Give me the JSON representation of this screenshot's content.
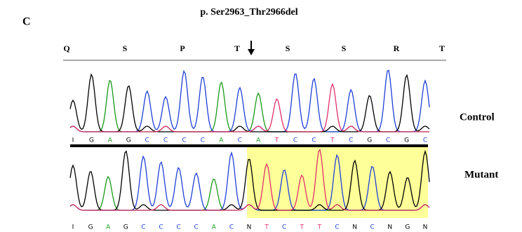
{
  "panel_label": "C",
  "title": "p. Ser2963_Thr2966del",
  "amino_acids": [
    "Q",
    "S",
    "P",
    "T",
    "S",
    "S",
    "R",
    "T"
  ],
  "labels": {
    "control": "Control",
    "mutant": "Mutant"
  },
  "sequences": {
    "control": [
      "I",
      "G",
      "A",
      "G",
      "C",
      "C",
      "C",
      "C",
      "A",
      "C",
      "A",
      "T",
      "C",
      "C",
      "T",
      "C",
      "G",
      "C",
      "G",
      "C"
    ],
    "mutant": [
      "I",
      "G",
      "A",
      "G",
      "C",
      "C",
      "C",
      "C",
      "A",
      "C",
      "N",
      "T",
      "C",
      "T",
      "T",
      "C",
      "N",
      "C",
      "N",
      "G",
      "N"
    ]
  }
}
